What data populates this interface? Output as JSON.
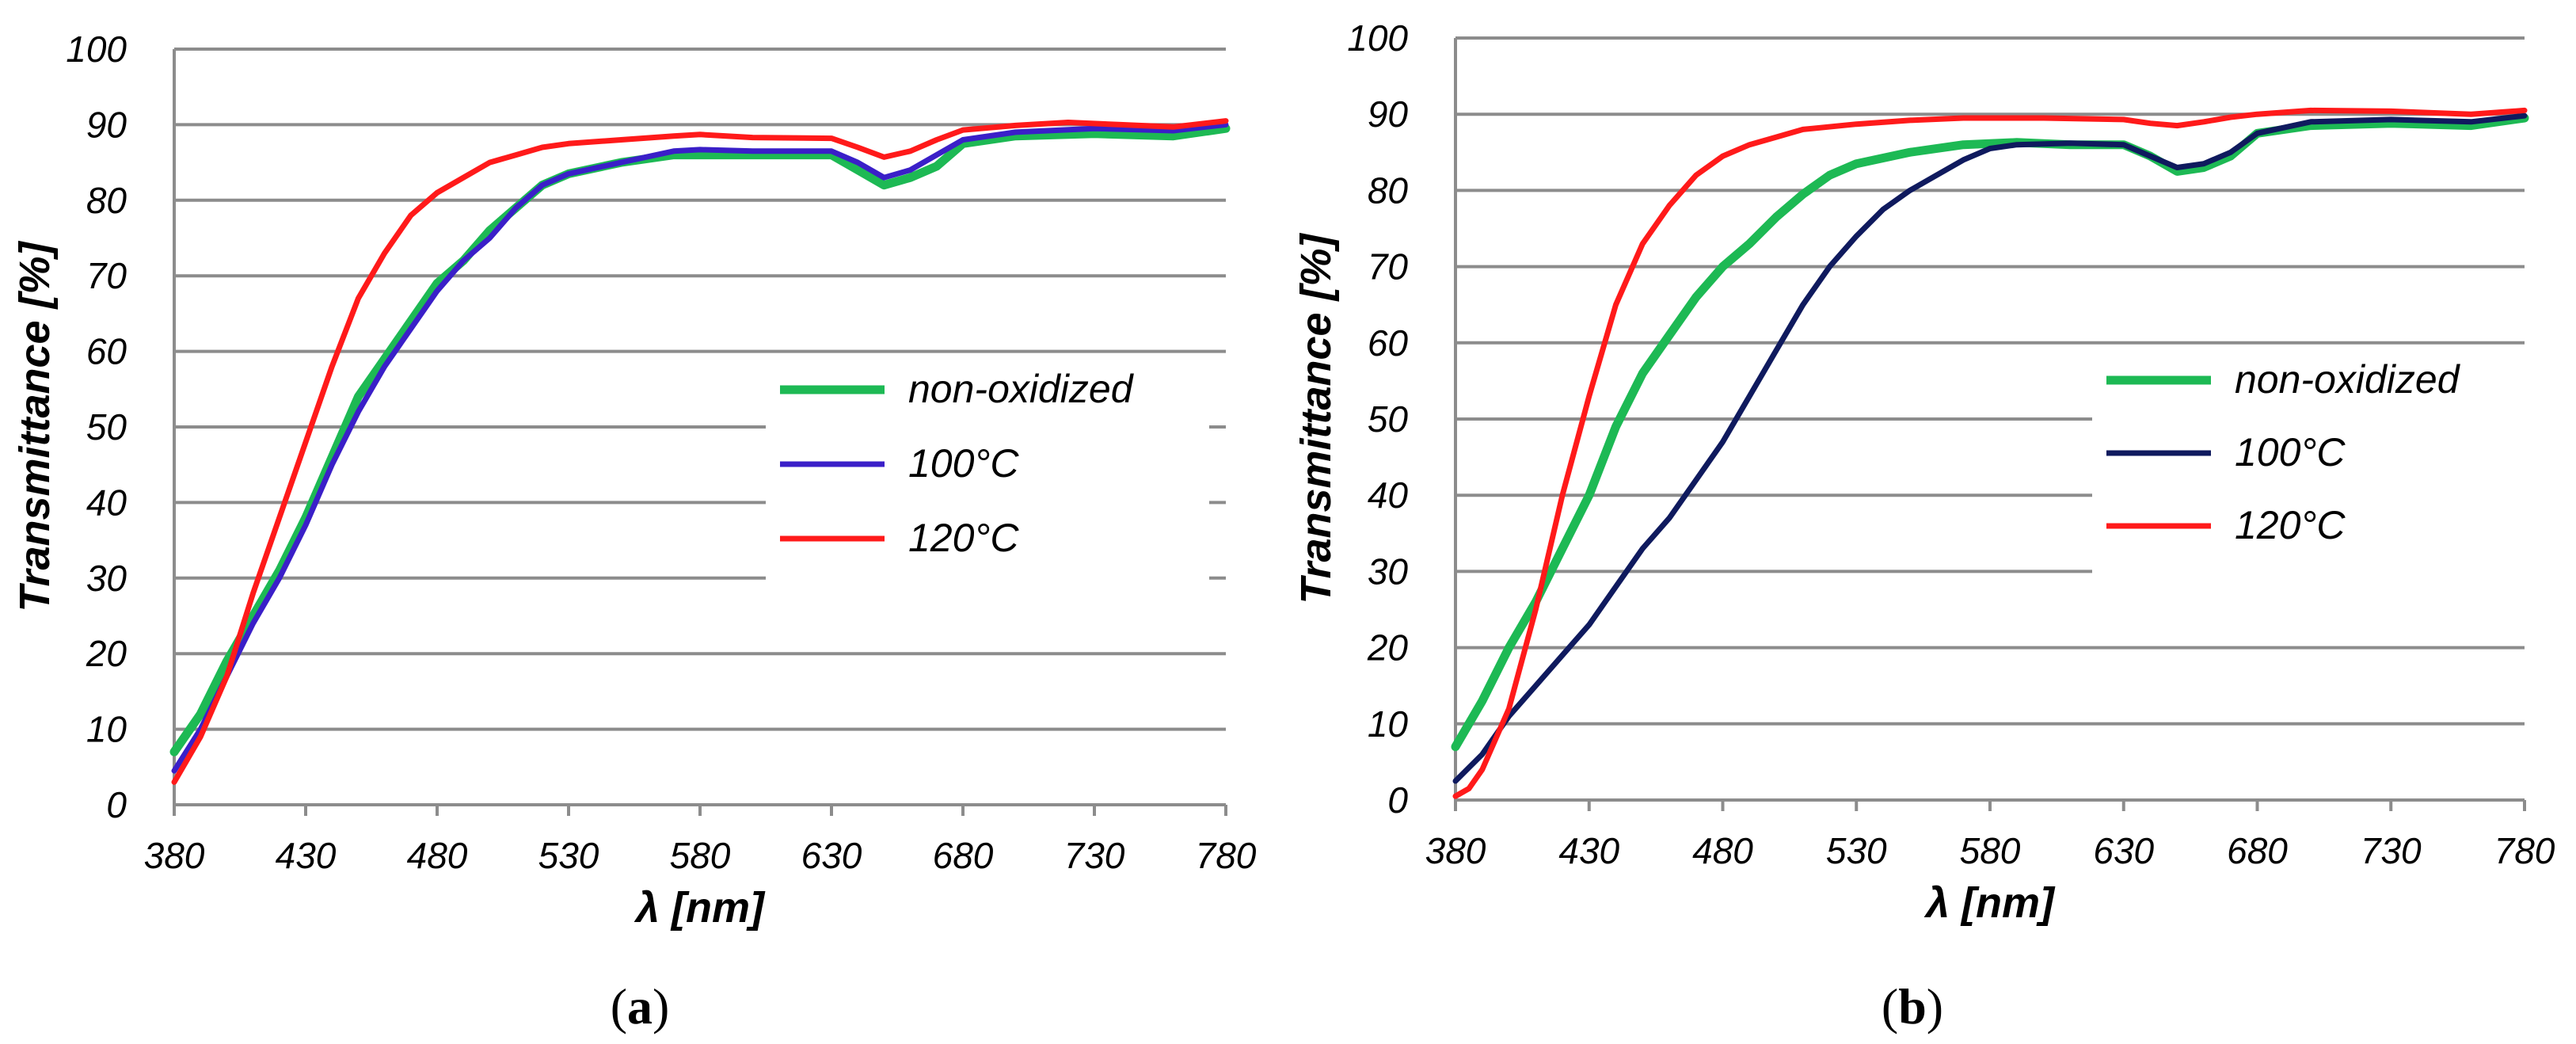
{
  "chart_data": [
    {
      "type": "line",
      "panel_label": {
        "open": "(",
        "letter": "a",
        "close": ")"
      },
      "xlabel": "λ [nm]",
      "ylabel": "Transmittance [%]",
      "xlim": [
        380,
        780
      ],
      "ylim": [
        0,
        100
      ],
      "xticks": [
        380,
        430,
        480,
        530,
        580,
        630,
        680,
        730,
        780
      ],
      "yticks": [
        0,
        10,
        20,
        30,
        40,
        50,
        60,
        70,
        80,
        90,
        100
      ],
      "grid": "horizontal",
      "legend_position": "center-right",
      "series": [
        {
          "name": "non-oxidized",
          "color": "#1DB954",
          "points": [
            [
              380,
              7
            ],
            [
              390,
              12
            ],
            [
              400,
              19
            ],
            [
              410,
              25
            ],
            [
              420,
              31
            ],
            [
              430,
              38
            ],
            [
              440,
              46
            ],
            [
              450,
              54
            ],
            [
              460,
              59
            ],
            [
              470,
              64
            ],
            [
              480,
              69
            ],
            [
              490,
              72
            ],
            [
              500,
              76
            ],
            [
              510,
              79
            ],
            [
              520,
              82
            ],
            [
              530,
              83.5
            ],
            [
              550,
              85
            ],
            [
              570,
              86
            ],
            [
              580,
              86
            ],
            [
              600,
              86
            ],
            [
              630,
              86
            ],
            [
              640,
              84
            ],
            [
              650,
              82
            ],
            [
              660,
              83
            ],
            [
              670,
              84.5
            ],
            [
              680,
              87.5
            ],
            [
              700,
              88.5
            ],
            [
              730,
              88.8
            ],
            [
              760,
              88.5
            ],
            [
              780,
              89.5
            ]
          ]
        },
        {
          "name": "100°C",
          "color": "#3A1FC8",
          "points": [
            [
              380,
              4.5
            ],
            [
              390,
              10
            ],
            [
              400,
              17
            ],
            [
              410,
              24
            ],
            [
              420,
              30
            ],
            [
              430,
              37
            ],
            [
              440,
              45
            ],
            [
              450,
              52
            ],
            [
              460,
              58
            ],
            [
              470,
              63
            ],
            [
              480,
              68
            ],
            [
              490,
              72
            ],
            [
              500,
              75
            ],
            [
              510,
              79
            ],
            [
              520,
              82
            ],
            [
              530,
              83.5
            ],
            [
              550,
              85
            ],
            [
              570,
              86.5
            ],
            [
              580,
              86.7
            ],
            [
              600,
              86.5
            ],
            [
              630,
              86.5
            ],
            [
              640,
              85
            ],
            [
              650,
              83
            ],
            [
              660,
              84
            ],
            [
              670,
              86
            ],
            [
              680,
              88
            ],
            [
              700,
              89
            ],
            [
              730,
              89.5
            ],
            [
              760,
              89.2
            ],
            [
              780,
              90
            ]
          ]
        },
        {
          "name": "120°C",
          "color": "#FF1A1A",
          "points": [
            [
              380,
              3
            ],
            [
              390,
              9
            ],
            [
              400,
              17
            ],
            [
              410,
              28
            ],
            [
              420,
              38
            ],
            [
              430,
              48
            ],
            [
              440,
              58
            ],
            [
              450,
              67
            ],
            [
              460,
              73
            ],
            [
              470,
              78
            ],
            [
              480,
              81
            ],
            [
              490,
              83
            ],
            [
              500,
              85
            ],
            [
              510,
              86
            ],
            [
              520,
              87
            ],
            [
              530,
              87.5
            ],
            [
              550,
              88
            ],
            [
              570,
              88.5
            ],
            [
              580,
              88.7
            ],
            [
              600,
              88.3
            ],
            [
              630,
              88.2
            ],
            [
              640,
              87
            ],
            [
              650,
              85.7
            ],
            [
              660,
              86.5
            ],
            [
              670,
              88
            ],
            [
              680,
              89.3
            ],
            [
              700,
              89.9
            ],
            [
              720,
              90.3
            ],
            [
              740,
              90
            ],
            [
              760,
              89.7
            ],
            [
              780,
              90.5
            ]
          ]
        }
      ]
    },
    {
      "type": "line",
      "panel_label": {
        "open": "(",
        "letter": "b",
        "close": ")"
      },
      "xlabel": "λ [nm]",
      "ylabel": "Transmittance [%]",
      "xlim": [
        380,
        780
      ],
      "ylim": [
        0,
        100
      ],
      "xticks": [
        380,
        430,
        480,
        530,
        580,
        630,
        680,
        730,
        780
      ],
      "yticks": [
        0,
        10,
        20,
        30,
        40,
        50,
        60,
        70,
        80,
        90,
        100
      ],
      "grid": "horizontal",
      "legend_position": "center-right",
      "series": [
        {
          "name": "non-oxidized",
          "color": "#1DB954",
          "points": [
            [
              380,
              7
            ],
            [
              390,
              13
            ],
            [
              400,
              20
            ],
            [
              410,
              26
            ],
            [
              420,
              33
            ],
            [
              430,
              40
            ],
            [
              440,
              49
            ],
            [
              450,
              56
            ],
            [
              460,
              61
            ],
            [
              470,
              66
            ],
            [
              480,
              70
            ],
            [
              490,
              73
            ],
            [
              500,
              76.5
            ],
            [
              510,
              79.5
            ],
            [
              520,
              82
            ],
            [
              530,
              83.5
            ],
            [
              550,
              85
            ],
            [
              570,
              86
            ],
            [
              590,
              86.3
            ],
            [
              610,
              86
            ],
            [
              630,
              86
            ],
            [
              640,
              84.5
            ],
            [
              650,
              82.5
            ],
            [
              660,
              83
            ],
            [
              670,
              84.5
            ],
            [
              680,
              87.5
            ],
            [
              700,
              88.5
            ],
            [
              730,
              88.8
            ],
            [
              760,
              88.5
            ],
            [
              780,
              89.5
            ]
          ]
        },
        {
          "name": "100°C",
          "color": "#0F1A5E",
          "points": [
            [
              380,
              2.5
            ],
            [
              390,
              6
            ],
            [
              400,
              11
            ],
            [
              410,
              15
            ],
            [
              420,
              19
            ],
            [
              430,
              23
            ],
            [
              440,
              28
            ],
            [
              450,
              33
            ],
            [
              460,
              37
            ],
            [
              470,
              42
            ],
            [
              480,
              47
            ],
            [
              490,
              53
            ],
            [
              500,
              59
            ],
            [
              510,
              65
            ],
            [
              520,
              70
            ],
            [
              530,
              74
            ],
            [
              540,
              77.5
            ],
            [
              550,
              80
            ],
            [
              560,
              82
            ],
            [
              570,
              84
            ],
            [
              580,
              85.5
            ],
            [
              590,
              86
            ],
            [
              610,
              86.2
            ],
            [
              630,
              86
            ],
            [
              640,
              84.5
            ],
            [
              650,
              83
            ],
            [
              660,
              83.5
            ],
            [
              670,
              85
            ],
            [
              680,
              87.5
            ],
            [
              700,
              89
            ],
            [
              730,
              89.3
            ],
            [
              760,
              89
            ],
            [
              780,
              89.8
            ]
          ]
        },
        {
          "name": "120°C",
          "color": "#FF1A1A",
          "points": [
            [
              380,
              0.5
            ],
            [
              385,
              1.5
            ],
            [
              390,
              4
            ],
            [
              400,
              12
            ],
            [
              410,
              25
            ],
            [
              420,
              40
            ],
            [
              430,
              53
            ],
            [
              440,
              65
            ],
            [
              450,
              73
            ],
            [
              460,
              78
            ],
            [
              470,
              82
            ],
            [
              480,
              84.5
            ],
            [
              490,
              86
            ],
            [
              500,
              87
            ],
            [
              510,
              88
            ],
            [
              530,
              88.7
            ],
            [
              550,
              89.2
            ],
            [
              570,
              89.5
            ],
            [
              600,
              89.5
            ],
            [
              630,
              89.3
            ],
            [
              640,
              88.8
            ],
            [
              650,
              88.5
            ],
            [
              660,
              89
            ],
            [
              670,
              89.6
            ],
            [
              680,
              90
            ],
            [
              700,
              90.5
            ],
            [
              730,
              90.4
            ],
            [
              760,
              90
            ],
            [
              780,
              90.5
            ]
          ]
        }
      ]
    }
  ]
}
